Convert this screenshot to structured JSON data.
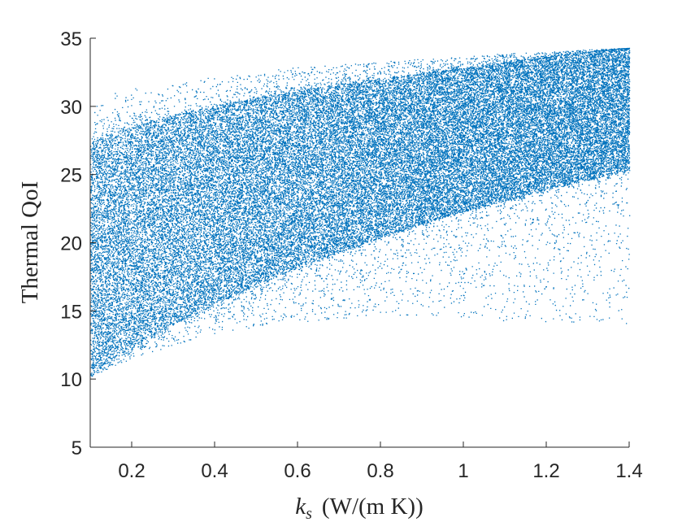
{
  "chart_data": {
    "type": "scatter",
    "title": "",
    "xlabel_parts": {
      "var": "k",
      "sub": "s",
      "unit": "(W/(m K))"
    },
    "ylabel": "Thermal QoI",
    "xlim": [
      0.1,
      1.4
    ],
    "ylim": [
      5,
      35
    ],
    "xticks": [
      0.2,
      0.4,
      0.6,
      0.8,
      1,
      1.2,
      1.4
    ],
    "xtick_labels": [
      "0.2",
      "0.4",
      "0.6",
      "0.8",
      "1",
      "1.2",
      "1.4"
    ],
    "yticks": [
      5,
      10,
      15,
      20,
      25,
      30,
      35
    ],
    "ytick_labels": [
      "5",
      "10",
      "15",
      "20",
      "25",
      "30",
      "35"
    ],
    "grid": false,
    "legend": "none",
    "marker_color": "#0072BD",
    "point_cloud": {
      "description_points": "dense cloud bounded by upper and lower envelopes",
      "x_samples": [
        0.1,
        0.2,
        0.3,
        0.4,
        0.5,
        0.6,
        0.7,
        0.8,
        0.9,
        1.0,
        1.1,
        1.2,
        1.3,
        1.4
      ],
      "dense_upper": [
        27.5,
        28.5,
        29.3,
        30.0,
        30.6,
        31.1,
        31.6,
        32.0,
        32.4,
        32.8,
        33.2,
        33.6,
        34.0,
        34.3
      ],
      "dense_lower": [
        10.2,
        12.3,
        14.0,
        15.5,
        16.9,
        18.2,
        19.3,
        20.4,
        21.4,
        22.3,
        23.1,
        23.9,
        24.6,
        25.3
      ],
      "sparse_upper": [
        30.8,
        31.3,
        31.8,
        32.2,
        32.6,
        32.9,
        33.1,
        33.3,
        33.5,
        33.7,
        33.9,
        34.0,
        34.2,
        34.3
      ],
      "sparse_lower": [
        10.2,
        11.5,
        12.5,
        13.3,
        13.8,
        14.2,
        14.4,
        14.5,
        14.5,
        14.4,
        14.3,
        14.2,
        14.1,
        14.0
      ]
    }
  }
}
